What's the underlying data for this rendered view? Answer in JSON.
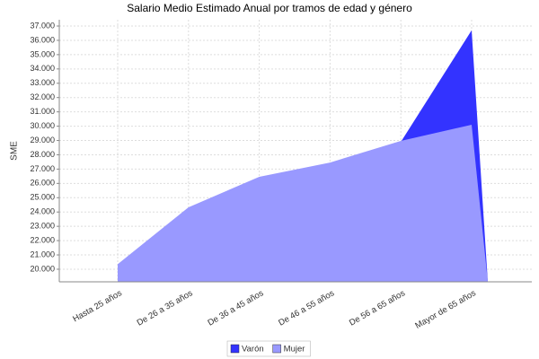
{
  "chart_data": {
    "type": "area",
    "title": "Salario Medio Estimado Anual por tramos de edad y género",
    "y_label": "SME",
    "categories": [
      "Hasta 25  años",
      "De 26  a 35  años",
      "De 36  a 45  años",
      "De 46  a 55  años",
      "De 56  a 65  años",
      "Mayor de 65  años"
    ],
    "series": [
      {
        "name": "Varón",
        "color": "#3333ff",
        "values": [
          20300,
          24250,
          26400,
          27400,
          28900,
          36700
        ]
      },
      {
        "name": "Mujer",
        "color": "#9999ff",
        "values": [
          20350,
          24330,
          26460,
          27460,
          28970,
          30100
        ]
      }
    ],
    "ylim": [
      19120,
      37440
    ],
    "yticks": [
      {
        "value": 20000,
        "label": "20.000"
      },
      {
        "value": 21000,
        "label": "21.000"
      },
      {
        "value": 22000,
        "label": "22.000"
      },
      {
        "value": 23000,
        "label": "23.000"
      },
      {
        "value": 24000,
        "label": "24.000"
      },
      {
        "value": 25000,
        "label": "25.000"
      },
      {
        "value": 26000,
        "label": "26.000"
      },
      {
        "value": 27000,
        "label": "27.000"
      },
      {
        "value": 28000,
        "label": "28.000"
      },
      {
        "value": 29000,
        "label": "29.000"
      },
      {
        "value": 30000,
        "label": "30.000"
      },
      {
        "value": 31000,
        "label": "31.000"
      },
      {
        "value": 32000,
        "label": "32.000"
      },
      {
        "value": 33000,
        "label": "33.000"
      },
      {
        "value": 34000,
        "label": "34.000"
      },
      {
        "value": 35000,
        "label": "35.000"
      },
      {
        "value": 36000,
        "label": "36.000"
      },
      {
        "value": 37000,
        "label": "37.000"
      }
    ],
    "grid": true
  }
}
